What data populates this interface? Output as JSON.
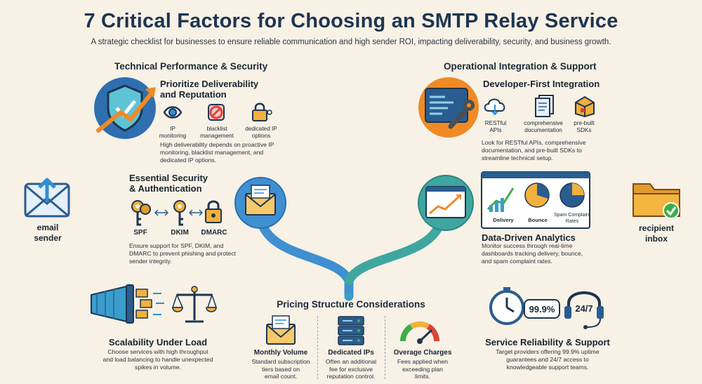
{
  "title": "7 Critical Factors for Choosing an SMTP Relay Service",
  "subtitle": "A strategic checklist for businesses to ensure reliable communication and high sender ROI, impacting deliverability, security, and business growth.",
  "sections": {
    "technical": "Technical Performance & Security",
    "operational": "Operational Integration & Support",
    "pricing": "Pricing Structure Considerations"
  },
  "endpoints": {
    "sender": "email\nsender",
    "recipient": "recipient\ninbox"
  },
  "deliverability": {
    "heading": "Prioritize Deliverability\nand Reputation",
    "items": [
      "IP\nmonitoring",
      "blacklist\nmanagement",
      "dedicated IP\noptions"
    ],
    "text": "High deliverability depends on proactive IP\nmonitoring, blacklist management, and\ndedicated IP options."
  },
  "security": {
    "heading": "Essential Security\n& Authentication",
    "items": [
      "SPF",
      "DKIM",
      "DMARC"
    ],
    "text": "Ensure support for SPF, DKIM, and\nDMARC to prevent phishing and protect\nsender integrity."
  },
  "developer": {
    "heading": "Developer-First Integration",
    "items": [
      "RESTful\nAPIs",
      "comprehensive\ndocumentation",
      "pre-built\nSDKs"
    ],
    "text": "Look for RESTful APIs, comprehensive\ndocumentation, and pre-built SDKs to\nstreamline technical setup."
  },
  "analytics": {
    "heading": "Data-Driven Analytics",
    "items": [
      "Delivery",
      "Bounce",
      "Spam Complaint\nRates"
    ],
    "text": "Monitor success through real-time\ndashboards tracking delivery, bounce,\nand spam complaint rates."
  },
  "scalability": {
    "heading": "Scalability Under Load",
    "text": "Choose services with high throughput\nand load balancing to handle unexpected\nspikes in volume."
  },
  "pricing": {
    "items": [
      {
        "title": "Monthly Volume",
        "text": "Standard subscription\ntiers based on\nemail count."
      },
      {
        "title": "Dedicated IPs",
        "text": "Often an additional\nfee for exclusive\nreputation control."
      },
      {
        "title": "Overage Charges",
        "text": "Fees applied when\nexceeding plan\nlimits."
      }
    ]
  },
  "reliability": {
    "heading": "Service Reliability & Support",
    "uptime": "99.9%",
    "support": "24/7",
    "text": "Target providers offering 99.9% uptime\nguarantees and 24/7 access to\nknowledgeable support teams."
  },
  "colors": {
    "navy": "#1d3550",
    "teal": "#3a9ec9",
    "orange": "#f08a24",
    "green": "#3fae49",
    "red": "#d9443a",
    "bg": "#f7f1e6"
  }
}
